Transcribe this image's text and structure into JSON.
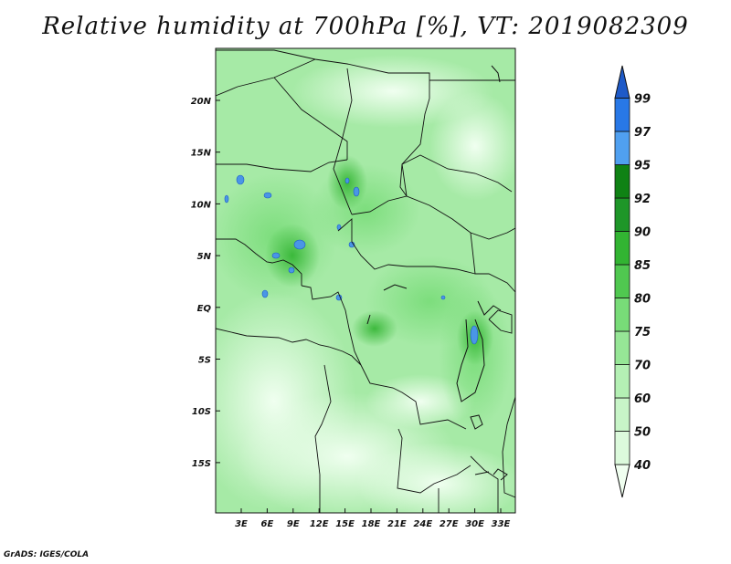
{
  "title": "Relative humidity at 700hPa [%], VT: 2019082309",
  "credit": "GrADS: IGES/COLA",
  "map": {
    "lat_labels": [
      "20N",
      "15N",
      "10N",
      "5N",
      "EQ",
      "5S",
      "10S",
      "15S"
    ],
    "lon_labels": [
      "3E",
      "6E",
      "9E",
      "12E",
      "15E",
      "18E",
      "21E",
      "24E",
      "27E",
      "30E",
      "33E"
    ]
  },
  "colorbar": {
    "levels": [
      "40",
      "50",
      "60",
      "70",
      "75",
      "80",
      "85",
      "90",
      "92",
      "95",
      "97",
      "99"
    ],
    "colors": [
      "#f0fff0",
      "#dcfadc",
      "#c8f5c8",
      "#b4f0b4",
      "#96e696",
      "#78dc78",
      "#50c850",
      "#32b432",
      "#1e9628",
      "#0f8214",
      "#50a0f0",
      "#2878e6",
      "#1e5ac8"
    ]
  }
}
